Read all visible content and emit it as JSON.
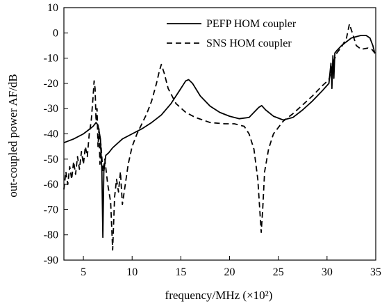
{
  "chart_data": {
    "type": "line",
    "title": "",
    "xlabel": "frequency/MHz  (×10²)",
    "ylabel": "out-coupled power AF/dB",
    "xlim": [
      3,
      35
    ],
    "ylim": [
      -90,
      10
    ],
    "x_ticks": [
      5,
      10,
      15,
      20,
      25,
      30,
      35
    ],
    "y_ticks": [
      10,
      0,
      -10,
      -20,
      -30,
      -40,
      -50,
      -60,
      -70,
      -80,
      -90
    ],
    "grid": false,
    "legend_position": "top-right",
    "series": [
      {
        "name": "PEFP HOM coupler",
        "style": "solid",
        "color": "#000000",
        "points": [
          [
            3.0,
            -43.5
          ],
          [
            4.0,
            -42.0
          ],
          [
            5.0,
            -40.0
          ],
          [
            5.5,
            -38.5
          ],
          [
            6.0,
            -37.0
          ],
          [
            6.3,
            -35.5
          ],
          [
            6.5,
            -36.5
          ],
          [
            6.75,
            -42.0
          ],
          [
            6.9,
            -55.0
          ],
          [
            7.0,
            -81.0
          ],
          [
            7.1,
            -55.0
          ],
          [
            7.3,
            -48.5
          ],
          [
            7.6,
            -47.5
          ],
          [
            8.0,
            -45.5
          ],
          [
            9.0,
            -42.0
          ],
          [
            10.0,
            -40.0
          ],
          [
            11.0,
            -38.0
          ],
          [
            12.0,
            -35.5
          ],
          [
            13.0,
            -32.5
          ],
          [
            14.0,
            -28.0
          ],
          [
            15.0,
            -22.0
          ],
          [
            15.5,
            -19.0
          ],
          [
            15.8,
            -18.5
          ],
          [
            16.2,
            -20.0
          ],
          [
            17.0,
            -25.0
          ],
          [
            18.0,
            -29.0
          ],
          [
            19.0,
            -31.5
          ],
          [
            20.0,
            -33.0
          ],
          [
            21.0,
            -34.0
          ],
          [
            22.0,
            -33.5
          ],
          [
            22.5,
            -31.5
          ],
          [
            23.0,
            -29.5
          ],
          [
            23.3,
            -28.8
          ],
          [
            23.7,
            -30.5
          ],
          [
            24.5,
            -33.0
          ],
          [
            25.5,
            -34.5
          ],
          [
            26.5,
            -33.5
          ],
          [
            27.5,
            -30.5
          ],
          [
            28.5,
            -27.0
          ],
          [
            29.5,
            -23.0
          ],
          [
            30.2,
            -20.0
          ],
          [
            30.4,
            -12.0
          ],
          [
            30.5,
            -22.0
          ],
          [
            30.6,
            -9.0
          ],
          [
            30.7,
            -18.0
          ],
          [
            30.8,
            -8.0
          ],
          [
            31.0,
            -7.0
          ],
          [
            31.5,
            -5.0
          ],
          [
            32.0,
            -3.5
          ],
          [
            32.5,
            -2.0
          ],
          [
            33.0,
            -1.5
          ],
          [
            33.5,
            -1.0
          ],
          [
            34.0,
            -1.0
          ],
          [
            34.4,
            -2.0
          ],
          [
            34.7,
            -5.0
          ],
          [
            34.9,
            -8.0
          ]
        ]
      },
      {
        "name": "SNS HOM coupler",
        "style": "dashed",
        "color": "#000000",
        "points": [
          [
            3.0,
            -62.0
          ],
          [
            3.2,
            -55.0
          ],
          [
            3.4,
            -60.0
          ],
          [
            3.6,
            -53.0
          ],
          [
            3.8,
            -58.0
          ],
          [
            4.0,
            -51.0
          ],
          [
            4.2,
            -56.0
          ],
          [
            4.4,
            -49.0
          ],
          [
            4.6,
            -54.0
          ],
          [
            4.8,
            -47.0
          ],
          [
            5.0,
            -52.0
          ],
          [
            5.2,
            -45.0
          ],
          [
            5.4,
            -49.0
          ],
          [
            5.6,
            -40.0
          ],
          [
            5.8,
            -35.0
          ],
          [
            6.0,
            -25.0
          ],
          [
            6.1,
            -19.0
          ],
          [
            6.2,
            -22.0
          ],
          [
            6.3,
            -35.0
          ],
          [
            6.4,
            -30.0
          ],
          [
            6.5,
            -45.0
          ],
          [
            6.6,
            -38.0
          ],
          [
            6.7,
            -52.0
          ],
          [
            6.8,
            -44.0
          ],
          [
            7.0,
            -55.0
          ],
          [
            7.2,
            -50.0
          ],
          [
            7.5,
            -60.0
          ],
          [
            7.8,
            -67.0
          ],
          [
            8.0,
            -86.0
          ],
          [
            8.2,
            -65.0
          ],
          [
            8.4,
            -58.0
          ],
          [
            8.6,
            -63.0
          ],
          [
            8.8,
            -55.0
          ],
          [
            9.0,
            -68.0
          ],
          [
            9.3,
            -60.0
          ],
          [
            9.6,
            -52.0
          ],
          [
            10.0,
            -45.0
          ],
          [
            10.5,
            -40.0
          ],
          [
            11.0,
            -36.0
          ],
          [
            11.5,
            -32.0
          ],
          [
            12.0,
            -27.0
          ],
          [
            12.5,
            -20.0
          ],
          [
            12.8,
            -15.0
          ],
          [
            13.0,
            -12.5
          ],
          [
            13.3,
            -16.0
          ],
          [
            13.7,
            -22.0
          ],
          [
            14.5,
            -28.0
          ],
          [
            15.5,
            -31.5
          ],
          [
            16.5,
            -33.5
          ],
          [
            18.0,
            -35.5
          ],
          [
            19.5,
            -36.0
          ],
          [
            20.5,
            -36.0
          ],
          [
            21.5,
            -37.0
          ],
          [
            22.0,
            -40.0
          ],
          [
            22.5,
            -46.0
          ],
          [
            22.9,
            -58.0
          ],
          [
            23.1,
            -70.0
          ],
          [
            23.25,
            -79.0
          ],
          [
            23.4,
            -70.0
          ],
          [
            23.6,
            -55.0
          ],
          [
            24.0,
            -46.0
          ],
          [
            24.5,
            -40.0
          ],
          [
            25.5,
            -35.0
          ],
          [
            26.5,
            -32.0
          ],
          [
            27.5,
            -28.5
          ],
          [
            28.5,
            -25.0
          ],
          [
            29.5,
            -21.0
          ],
          [
            30.2,
            -18.5
          ],
          [
            30.5,
            -14.0
          ],
          [
            30.8,
            -10.0
          ],
          [
            31.0,
            -8.0
          ],
          [
            31.5,
            -5.5
          ],
          [
            32.0,
            -2.0
          ],
          [
            32.3,
            3.5
          ],
          [
            32.6,
            0.0
          ],
          [
            33.0,
            -5.0
          ],
          [
            33.5,
            -6.5
          ],
          [
            34.2,
            -6.0
          ],
          [
            34.6,
            -6.5
          ],
          [
            34.8,
            -7.5
          ],
          [
            35.0,
            -8.5
          ]
        ]
      }
    ]
  }
}
